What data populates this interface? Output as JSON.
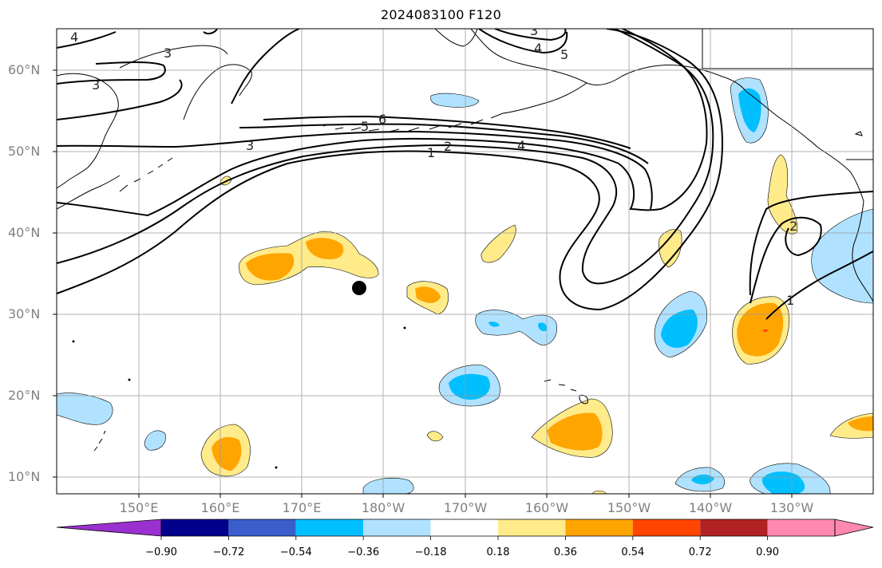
{
  "title": "2024083100 F120",
  "lat_labels": [
    "60°N",
    "50°N",
    "40°N",
    "30°N",
    "20°N",
    "10°N"
  ],
  "lon_labels": [
    "150°E",
    "160°E",
    "170°E",
    "180°W",
    "170°W",
    "160°W",
    "150°W",
    "140°W",
    "130°W"
  ],
  "colorbar": {
    "colors": [
      "#9b30d0",
      "#00008b",
      "#3a5fcd",
      "#00bfff",
      "#b0e2ff",
      "#ffffff",
      "#ffeb8a",
      "#ffa500",
      "#ff4500",
      "#b22222",
      "#ff88b0"
    ],
    "tick_labels": [
      "−0.90",
      "−0.72",
      "−0.54",
      "−0.36",
      "−0.18",
      "0.18",
      "0.36",
      "0.54",
      "0.72",
      "0.90"
    ]
  },
  "contour_labels": [
    "1",
    "2",
    "3",
    "4",
    "5",
    "6",
    "3",
    "3",
    "4",
    "3",
    "4",
    "5",
    "2",
    "1"
  ]
}
